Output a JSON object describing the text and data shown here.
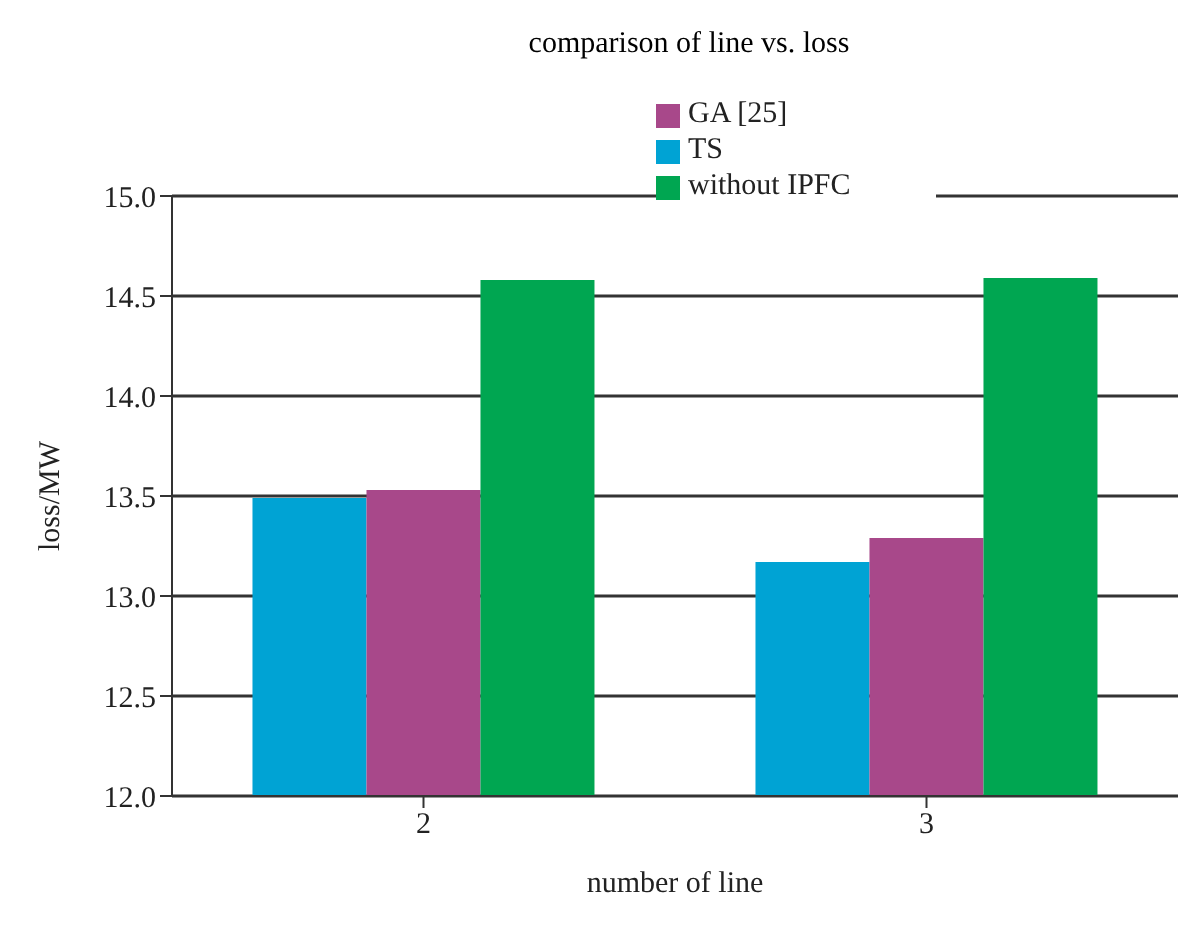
{
  "chart_data": {
    "type": "bar",
    "title": "comparison of line vs. loss",
    "xlabel": "number of line",
    "ylabel": "loss/MW",
    "categories": [
      "2",
      "3"
    ],
    "series": [
      {
        "name": "TS",
        "color": "#00a3d4",
        "values": [
          13.49,
          13.17
        ]
      },
      {
        "name": "GA [25]",
        "color": "#a8488a",
        "values": [
          13.53,
          13.29
        ]
      },
      {
        "name": "without IPFC",
        "color": "#00a651",
        "values": [
          14.58,
          14.59
        ]
      }
    ],
    "ylim": [
      12.0,
      15.0
    ],
    "yticks": [
      {
        "value": 12,
        "label": "12.0"
      },
      {
        "value": 12.5,
        "label": "12.5"
      },
      {
        "value": 13,
        "label": "13.0"
      },
      {
        "value": 13.5,
        "label": "13.5"
      },
      {
        "value": 14,
        "label": "14.0"
      },
      {
        "value": 14.5,
        "label": "14.5"
      },
      {
        "value": 15,
        "label": "15.0"
      }
    ],
    "grid": "y",
    "legend": "top"
  }
}
